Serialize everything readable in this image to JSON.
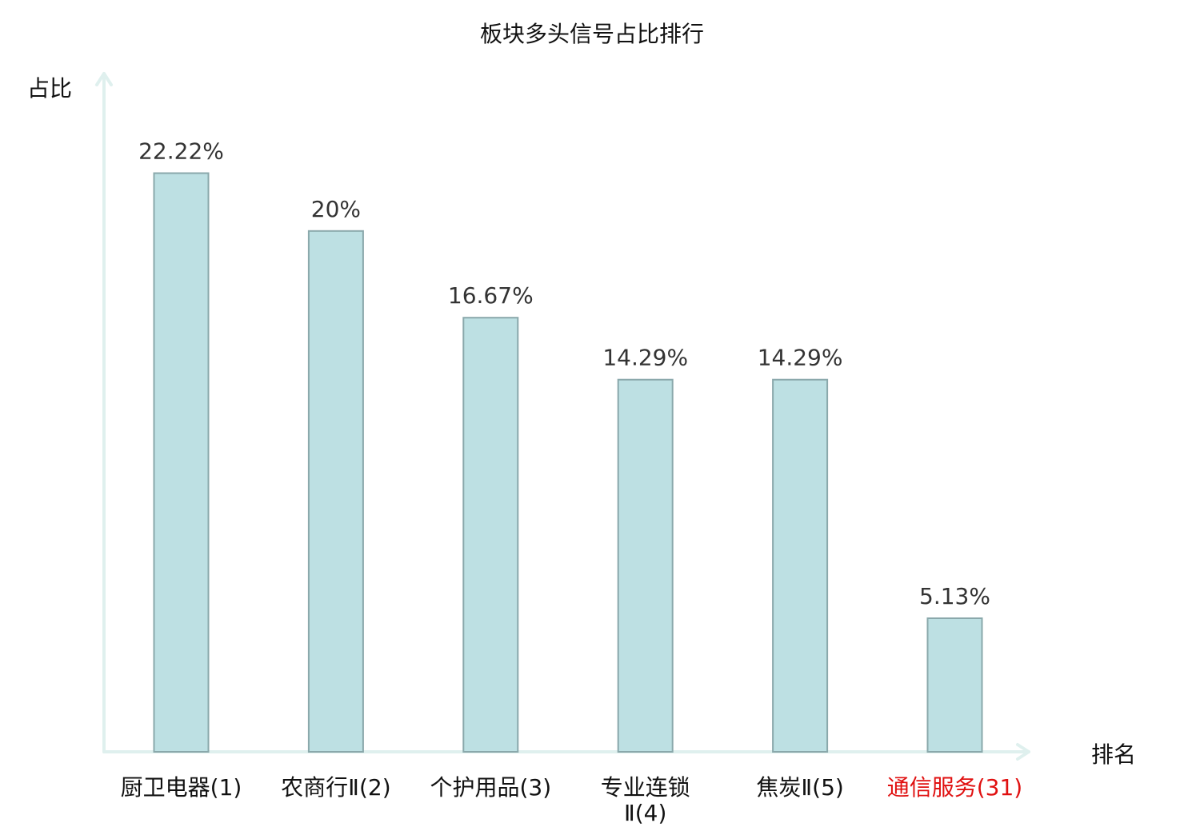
{
  "chart_data": {
    "type": "bar",
    "title": "板块多头信号占比排行",
    "ylabel": "占比",
    "xlabel": "排名",
    "categories": [
      "厨卫电器(1)",
      "农商行Ⅱ(2)",
      "个护用品(3)",
      "专业连锁Ⅱ(4)",
      "焦炭Ⅱ(5)",
      "通信服务(31)"
    ],
    "category_label_lines": [
      [
        "厨卫电器(1)"
      ],
      [
        "农商行Ⅱ(2)"
      ],
      [
        "个护用品(3)"
      ],
      [
        "专业连锁",
        "Ⅱ(4)"
      ],
      [
        "焦炭Ⅱ(5)"
      ],
      [
        "通信服务(31)"
      ]
    ],
    "values": [
      22.22,
      20,
      16.67,
      14.29,
      14.29,
      5.13
    ],
    "value_labels": [
      "22.22%",
      "20%",
      "16.67%",
      "14.29%",
      "14.29%",
      "5.13%"
    ],
    "highlight_index": 5,
    "ylim": [
      0,
      25
    ],
    "grid": false,
    "legend": "none",
    "colors": {
      "bar_fill": "#bde0e3",
      "bar_stroke": "#8aa8ab",
      "axis": "#dff0ee",
      "text": "#333333",
      "label": "#111111",
      "highlight": "#e01010"
    }
  }
}
